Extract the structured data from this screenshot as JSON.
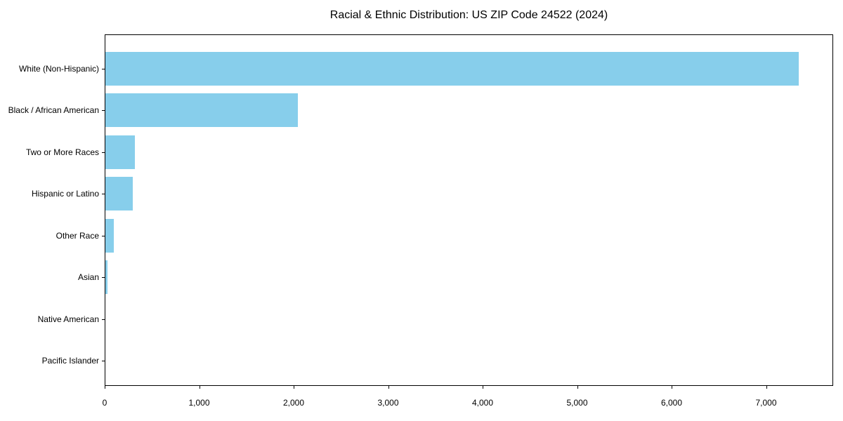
{
  "title": "Racial & Ethnic Distribution: US ZIP Code 24522 (2024)",
  "chart_data": {
    "type": "bar",
    "orientation": "horizontal",
    "title": "Racial & Ethnic Distribution: US ZIP Code 24522 (2024)",
    "categories": [
      "White (Non-Hispanic)",
      "Black / African American",
      "Two or More Races",
      "Hispanic or Latino",
      "Other Race",
      "Asian",
      "Native American",
      "Pacific Islander"
    ],
    "values": [
      7338,
      2037,
      310,
      288,
      87,
      20,
      0,
      0
    ],
    "xlabel": "",
    "ylabel": "",
    "xlim": [
      0,
      7710
    ],
    "xticks": {
      "values": [
        0,
        1000,
        2000,
        3000,
        4000,
        5000,
        6000,
        7000
      ],
      "labels": [
        "0",
        "1,000",
        "2,000",
        "3,000",
        "4,000",
        "5,000",
        "6,000",
        "7,000"
      ]
    },
    "grid": false,
    "legend": null,
    "bar_color": "#87CEEB",
    "axis_color": "#000000",
    "background_color": "#ffffff"
  }
}
